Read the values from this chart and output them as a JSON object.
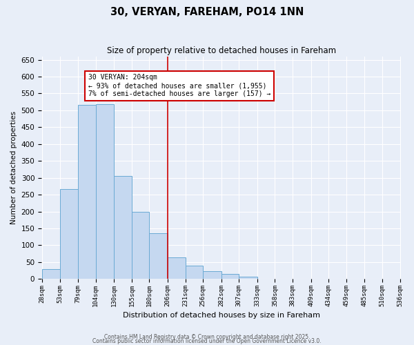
{
  "title": "30, VERYAN, FAREHAM, PO14 1NN",
  "subtitle": "Size of property relative to detached houses in Fareham",
  "xlabel": "Distribution of detached houses by size in Fareham",
  "ylabel": "Number of detached properties",
  "bar_color": "#c5d8f0",
  "bar_edge_color": "#6aaad4",
  "background_color": "#e8eef8",
  "grid_color": "#ffffff",
  "vline_x": 206,
  "vline_color": "#cc0000",
  "bin_edges": [
    28,
    53,
    79,
    104,
    130,
    155,
    180,
    206,
    231,
    256,
    282,
    307,
    333,
    358,
    383,
    409,
    434,
    459,
    485,
    510,
    536
  ],
  "bin_labels": [
    "28sqm",
    "53sqm",
    "79sqm",
    "104sqm",
    "130sqm",
    "155sqm",
    "180sqm",
    "206sqm",
    "231sqm",
    "256sqm",
    "282sqm",
    "307sqm",
    "333sqm",
    "358sqm",
    "383sqm",
    "409sqm",
    "434sqm",
    "459sqm",
    "485sqm",
    "510sqm",
    "536sqm"
  ],
  "bar_heights": [
    30,
    267,
    517,
    519,
    305,
    200,
    136,
    65,
    40,
    24,
    14,
    6,
    1,
    0,
    0,
    1,
    0,
    0,
    0,
    1
  ],
  "ylim": [
    0,
    660
  ],
  "yticks": [
    0,
    50,
    100,
    150,
    200,
    250,
    300,
    350,
    400,
    450,
    500,
    550,
    600,
    650
  ],
  "annotation_text": "30 VERYAN: 204sqm\n← 93% of detached houses are smaller (1,955)\n7% of semi-detached houses are larger (157) →",
  "annotation_box_color": "#ffffff",
  "annotation_border_color": "#cc0000",
  "footer_line1": "Contains HM Land Registry data © Crown copyright and database right 2025.",
  "footer_line2": "Contains public sector information licensed under the Open Government Licence v3.0."
}
